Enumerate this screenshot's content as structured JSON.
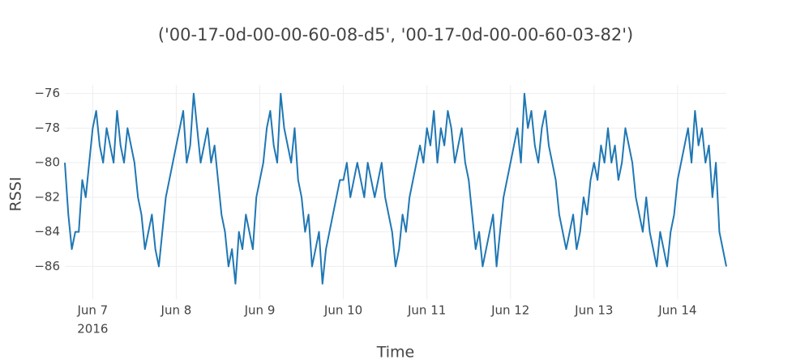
{
  "chart_data": {
    "type": "line",
    "title": "('00-17-0d-00-00-60-08-d5', '00-17-0d-00-00-60-03-82')",
    "x_label": "Time",
    "y_label": "RSSI",
    "xlim": [
      "2016-06-06 16:00",
      "2016-06-14 14:00"
    ],
    "xticks": [
      {
        "value": "2016-06-07",
        "label": "Jun 7"
      },
      {
        "value": "2016-06-08",
        "label": "Jun 8"
      },
      {
        "value": "2016-06-09",
        "label": "Jun 9"
      },
      {
        "value": "2016-06-10",
        "label": "Jun 10"
      },
      {
        "value": "2016-06-11",
        "label": "Jun 11"
      },
      {
        "value": "2016-06-12",
        "label": "Jun 12"
      },
      {
        "value": "2016-06-13",
        "label": "Jun 13"
      },
      {
        "value": "2016-06-14",
        "label": "Jun 14"
      }
    ],
    "xtick_sublabel": "2016",
    "ylim": [
      -87.9,
      -75.5
    ],
    "yticks": [
      {
        "value": -76,
        "label": "−76"
      },
      {
        "value": -78,
        "label": "−78"
      },
      {
        "value": -80,
        "label": "−80"
      },
      {
        "value": -82,
        "label": "−82"
      },
      {
        "value": -84,
        "label": "−84"
      },
      {
        "value": -86,
        "label": "−86"
      }
    ],
    "grid": true,
    "color": "#1f77b4",
    "values": [
      -80,
      -83,
      -85,
      -84,
      -84,
      -81,
      -82,
      -80,
      -78,
      -77,
      -79,
      -80,
      -78,
      -79,
      -80,
      -77,
      -79,
      -80,
      -78,
      -79,
      -80,
      -82,
      -83,
      -85,
      -84,
      -83,
      -85,
      -86,
      -84,
      -82,
      -81,
      -80,
      -79,
      -78,
      -77,
      -80,
      -79,
      -76,
      -78,
      -80,
      -79,
      -78,
      -80,
      -79,
      -81,
      -83,
      -84,
      -86,
      -85,
      -87,
      -84,
      -85,
      -83,
      -84,
      -85,
      -82,
      -81,
      -80,
      -78,
      -77,
      -79,
      -80,
      -76,
      -78,
      -79,
      -80,
      -78,
      -81,
      -82,
      -84,
      -83,
      -86,
      -85,
      -84,
      -87,
      -85,
      -84,
      -83,
      -82,
      -81,
      -81,
      -80,
      -82,
      -81,
      -80,
      -81,
      -82,
      -80,
      -81,
      -82,
      -81,
      -80,
      -82,
      -83,
      -84,
      -86,
      -85,
      -83,
      -84,
      -82,
      -81,
      -80,
      -79,
      -80,
      -78,
      -79,
      -77,
      -80,
      -78,
      -79,
      -77,
      -78,
      -80,
      -79,
      -78,
      -80,
      -81,
      -83,
      -85,
      -84,
      -86,
      -85,
      -84,
      -83,
      -86,
      -84,
      -82,
      -81,
      -80,
      -79,
      -78,
      -80,
      -76,
      -78,
      -77,
      -79,
      -80,
      -78,
      -77,
      -79,
      -80,
      -81,
      -83,
      -84,
      -85,
      -84,
      -83,
      -85,
      -84,
      -82,
      -83,
      -81,
      -80,
      -81,
      -79,
      -80,
      -78,
      -80,
      -79,
      -81,
      -80,
      -78,
      -79,
      -80,
      -82,
      -83,
      -84,
      -82,
      -84,
      -85,
      -86,
      -84,
      -85,
      -86,
      -84,
      -83,
      -81,
      -80,
      -79,
      -78,
      -80,
      -77,
      -79,
      -78,
      -80,
      -79,
      -82,
      -80,
      -84,
      -85,
      -86
    ]
  }
}
